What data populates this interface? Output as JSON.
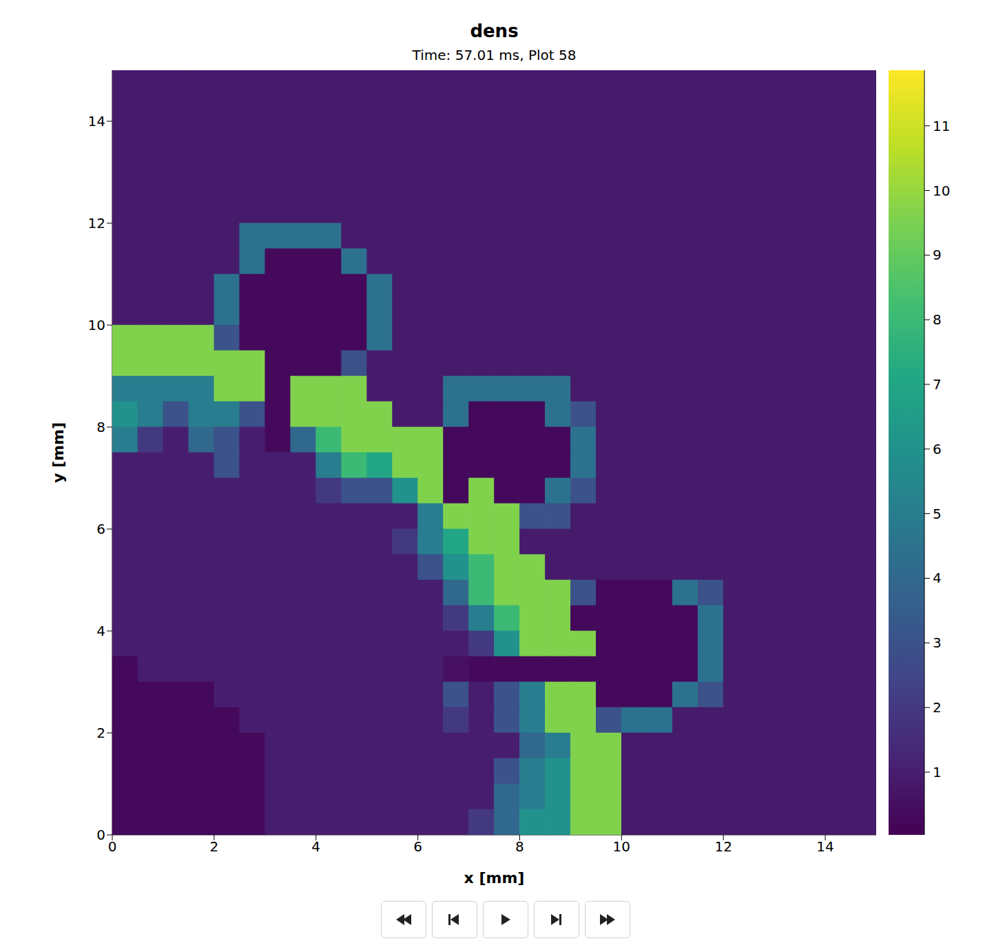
{
  "chart_data": {
    "type": "heatmap",
    "title": "dens",
    "subtitle": "Time: 57.01 ms, Plot 58",
    "x_label": "x [mm]",
    "y_label": "y [mm]",
    "xlim": [
      0,
      15
    ],
    "ylim": [
      0,
      15
    ],
    "xticks": [
      0,
      2,
      4,
      6,
      8,
      10,
      12,
      14
    ],
    "yticks": [
      0,
      2,
      4,
      6,
      8,
      10,
      12,
      14
    ],
    "colorbar": {
      "range": [
        0.03,
        11.86
      ],
      "ticks": [
        1,
        2,
        3,
        4,
        5,
        6,
        7,
        8,
        9,
        10,
        11
      ]
    },
    "cells": [
      [
        0.9,
        0.9,
        0.9,
        0.9,
        0.9,
        0.9,
        0.9,
        0.9,
        0.9,
        0.9,
        0.9,
        0.9,
        0.9,
        0.9,
        0.9,
        0.9,
        0.9,
        0.9,
        0.9,
        0.9,
        0.9,
        0.9,
        0.9,
        0.9,
        0.9,
        0.9,
        0.9,
        0.9,
        0.9,
        0.9
      ],
      [
        0.9,
        0.9,
        0.9,
        0.9,
        0.9,
        0.9,
        0.9,
        0.9,
        0.9,
        0.9,
        0.9,
        0.9,
        0.9,
        0.9,
        0.9,
        0.9,
        0.9,
        0.9,
        0.9,
        0.9,
        0.9,
        0.9,
        0.9,
        0.9,
        0.9,
        0.9,
        0.9,
        0.9,
        0.9,
        0.9
      ],
      [
        0.9,
        0.9,
        0.9,
        0.9,
        0.9,
        0.9,
        0.9,
        0.9,
        0.9,
        0.9,
        0.9,
        0.9,
        0.9,
        0.9,
        0.9,
        0.9,
        0.9,
        0.9,
        0.9,
        0.9,
        0.9,
        0.9,
        0.9,
        0.9,
        0.9,
        0.9,
        0.9,
        0.9,
        0.9,
        0.9
      ],
      [
        0.9,
        0.9,
        0.9,
        0.9,
        0.9,
        0.9,
        0.9,
        0.9,
        0.9,
        0.9,
        0.9,
        0.9,
        0.9,
        0.9,
        0.9,
        0.9,
        0.9,
        0.9,
        0.9,
        0.9,
        0.9,
        0.9,
        0.9,
        0.9,
        0.9,
        0.9,
        0.9,
        0.9,
        0.9,
        0.9
      ],
      [
        0.9,
        0.9,
        0.9,
        0.9,
        0.9,
        0.9,
        0.9,
        0.9,
        0.9,
        0.9,
        0.9,
        0.9,
        0.9,
        0.9,
        0.9,
        0.9,
        0.9,
        0.9,
        0.9,
        0.9,
        0.9,
        0.9,
        0.9,
        0.9,
        0.9,
        0.9,
        0.9,
        0.9,
        0.9,
        0.9
      ],
      [
        0.9,
        0.9,
        0.9,
        0.9,
        0.9,
        0.9,
        0.9,
        0.9,
        0.9,
        0.9,
        0.9,
        0.9,
        0.9,
        0.9,
        0.9,
        0.9,
        0.9,
        0.9,
        0.9,
        0.9,
        0.9,
        0.9,
        0.9,
        0.9,
        0.9,
        0.9,
        0.9,
        0.9,
        0.9,
        0.9
      ],
      [
        0.9,
        0.9,
        0.9,
        0.9,
        0.9,
        4.5,
        4.5,
        4.5,
        4.5,
        0.9,
        0.9,
        0.9,
        0.9,
        0.9,
        0.9,
        0.9,
        0.9,
        0.9,
        0.9,
        0.9,
        0.9,
        0.9,
        0.9,
        0.9,
        0.9,
        0.9,
        0.9,
        0.9,
        0.9,
        0.9
      ],
      [
        0.9,
        0.9,
        0.9,
        0.9,
        0.9,
        4.5,
        0.3,
        0.3,
        0.3,
        4.5,
        0.9,
        0.9,
        0.9,
        0.9,
        0.9,
        0.9,
        0.9,
        0.9,
        0.9,
        0.9,
        0.9,
        0.9,
        0.9,
        0.9,
        0.9,
        0.9,
        0.9,
        0.9,
        0.9,
        0.9
      ],
      [
        0.9,
        0.9,
        0.9,
        0.9,
        4.5,
        0.3,
        0.3,
        0.3,
        0.3,
        0.3,
        4.5,
        0.9,
        0.9,
        0.9,
        0.9,
        0.9,
        0.9,
        0.9,
        0.9,
        0.9,
        0.9,
        0.9,
        0.9,
        0.9,
        0.9,
        0.9,
        0.9,
        0.9,
        0.9,
        0.9
      ],
      [
        0.9,
        0.9,
        0.9,
        0.9,
        4.5,
        0.3,
        0.3,
        0.3,
        0.3,
        0.3,
        4.5,
        0.9,
        0.9,
        0.9,
        0.9,
        0.9,
        0.9,
        0.9,
        0.9,
        0.9,
        0.9,
        0.9,
        0.9,
        0.9,
        0.9,
        0.9,
        0.9,
        0.9,
        0.9,
        0.9
      ],
      [
        9.6,
        9.6,
        9.6,
        9.6,
        3,
        0.3,
        0.3,
        0.3,
        0.3,
        0.3,
        4.5,
        0.9,
        0.9,
        0.9,
        0.9,
        0.9,
        0.9,
        0.9,
        0.9,
        0.9,
        0.9,
        0.9,
        0.9,
        0.9,
        0.9,
        0.9,
        0.9,
        0.9,
        0.9,
        0.9
      ],
      [
        9.6,
        9.6,
        9.6,
        9.6,
        9.6,
        9.6,
        0.3,
        0.3,
        0.3,
        3,
        0.9,
        0.9,
        0.9,
        0.9,
        0.9,
        0.9,
        0.9,
        0.9,
        0.9,
        0.9,
        0.9,
        0.9,
        0.9,
        0.9,
        0.9,
        0.9,
        0.9,
        0.9,
        0.9,
        0.9
      ],
      [
        5,
        5,
        5,
        5,
        9.6,
        9.6,
        0.3,
        9.6,
        9.6,
        9.6,
        0.9,
        0.9,
        0.9,
        4.5,
        4.5,
        4.5,
        4.5,
        4.5,
        0.9,
        0.9,
        0.9,
        0.9,
        0.9,
        0.9,
        0.9,
        0.9,
        0.9,
        0.9,
        0.9,
        0.9
      ],
      [
        6,
        5,
        3,
        5,
        5,
        3,
        0.3,
        9.6,
        9.6,
        9.6,
        9.6,
        0.9,
        0.9,
        4.5,
        0.3,
        0.3,
        0.3,
        4.5,
        3,
        0.9,
        0.9,
        0.9,
        0.9,
        0.9,
        0.9,
        0.9,
        0.9,
        0.9,
        0.9,
        0.9
      ],
      [
        5,
        2,
        1,
        4,
        3,
        1,
        0.3,
        4,
        8,
        9.6,
        9.6,
        9.6,
        9.6,
        0.3,
        0.3,
        0.3,
        0.3,
        0.3,
        4.5,
        0.9,
        0.9,
        0.9,
        0.9,
        0.9,
        0.9,
        0.9,
        0.9,
        0.9,
        0.9,
        0.9
      ],
      [
        1,
        1,
        1,
        1,
        3,
        1,
        1,
        1,
        5,
        8,
        7,
        9.6,
        9.6,
        0.3,
        0.3,
        0.3,
        0.3,
        0.3,
        4.5,
        0.9,
        0.9,
        0.9,
        0.9,
        0.9,
        0.9,
        0.9,
        0.9,
        0.9,
        0.9,
        0.9
      ],
      [
        1,
        1,
        1,
        1,
        1,
        1,
        1,
        1,
        2,
        3,
        3,
        6,
        9.6,
        0.3,
        9.6,
        0.3,
        0.3,
        4.5,
        3,
        0.9,
        0.9,
        0.9,
        0.9,
        0.9,
        0.9,
        0.9,
        0.9,
        0.9,
        0.9,
        0.9
      ],
      [
        1,
        1,
        1,
        1,
        1,
        1,
        1,
        1,
        1,
        1,
        1,
        1,
        5,
        9.6,
        9.6,
        9.6,
        3,
        3,
        0.9,
        0.9,
        0.9,
        0.9,
        0.9,
        0.9,
        0.9,
        0.9,
        0.9,
        0.9,
        0.9,
        0.9
      ],
      [
        1,
        1,
        1,
        1,
        1,
        1,
        1,
        1,
        1,
        1,
        1,
        2,
        5,
        7,
        9.6,
        9.6,
        0.9,
        0.9,
        0.9,
        0.9,
        0.9,
        0.9,
        0.9,
        0.9,
        0.9,
        0.9,
        0.9,
        0.9,
        0.9,
        0.9
      ],
      [
        1,
        1,
        1,
        1,
        1,
        1,
        1,
        1,
        1,
        1,
        1,
        1,
        3,
        6,
        8,
        9.6,
        9.6,
        0.9,
        0.9,
        0.9,
        0.9,
        0.9,
        0.9,
        0.9,
        0.9,
        0.9,
        0.9,
        0.9,
        0.9,
        0.9
      ],
      [
        1,
        1,
        1,
        1,
        1,
        1,
        1,
        1,
        1,
        1,
        1,
        1,
        1,
        4,
        8,
        9.6,
        9.6,
        9.6,
        3,
        0.3,
        0.3,
        0.3,
        4.5,
        3,
        0.9,
        0.9,
        0.9,
        0.9,
        0.9,
        0.9
      ],
      [
        1,
        1,
        1,
        1,
        1,
        1,
        1,
        1,
        1,
        1,
        1,
        1,
        1,
        2,
        5,
        8,
        9.6,
        9.6,
        0.3,
        0.3,
        0.3,
        0.3,
        0.3,
        4.5,
        0.9,
        0.9,
        0.9,
        0.9,
        0.9,
        0.9
      ],
      [
        1,
        1,
        1,
        1,
        1,
        1,
        1,
        1,
        1,
        1,
        1,
        1,
        1,
        1,
        2,
        6,
        9.6,
        9.6,
        9.6,
        0.3,
        0.3,
        0.3,
        0.3,
        4.5,
        0.9,
        0.9,
        0.9,
        0.9,
        0.9,
        0.9
      ],
      [
        0.3,
        1,
        1,
        1,
        1,
        1,
        1,
        1,
        1,
        1,
        1,
        1,
        1,
        0.5,
        0.3,
        0.3,
        0.3,
        0.3,
        0.3,
        0.3,
        0.3,
        0.3,
        0.3,
        4.5,
        0.9,
        0.9,
        0.9,
        0.9,
        0.9,
        0.9
      ],
      [
        0.3,
        0.3,
        0.3,
        0.3,
        1,
        1,
        1,
        1,
        1,
        1,
        1,
        1,
        1,
        3,
        1,
        3,
        5,
        9.6,
        9.6,
        0.3,
        0.3,
        0.3,
        4.5,
        3,
        0.9,
        0.9,
        0.9,
        0.9,
        0.9,
        0.9
      ],
      [
        0.3,
        0.3,
        0.3,
        0.3,
        0.3,
        1,
        1,
        1,
        1,
        1,
        1,
        1,
        1,
        2,
        1,
        3,
        5,
        9.6,
        9.6,
        3,
        4.5,
        4.5,
        0.9,
        0.9,
        0.9,
        0.9,
        0.9,
        0.9,
        0.9,
        0.9
      ],
      [
        0.3,
        0.3,
        0.3,
        0.3,
        0.3,
        0.3,
        1,
        1,
        1,
        1,
        1,
        1,
        1,
        1,
        1,
        1,
        4,
        5,
        9.6,
        9.6,
        0.9,
        0.9,
        0.9,
        0.9,
        0.9,
        0.9,
        0.9,
        0.9,
        0.9,
        0.9
      ],
      [
        0.3,
        0.3,
        0.3,
        0.3,
        0.3,
        0.3,
        1,
        1,
        1,
        1,
        1,
        1,
        1,
        1,
        1,
        3,
        5,
        6,
        9.6,
        9.6,
        0.9,
        0.9,
        0.9,
        0.9,
        0.9,
        0.9,
        0.9,
        0.9,
        0.9,
        0.9
      ],
      [
        0.3,
        0.3,
        0.3,
        0.3,
        0.3,
        0.3,
        1,
        1,
        1,
        1,
        1,
        1,
        1,
        1,
        1,
        4,
        5,
        6,
        9.6,
        9.6,
        0.9,
        0.9,
        0.9,
        0.9,
        0.9,
        0.9,
        0.9,
        0.9,
        0.9,
        0.9
      ],
      [
        0.3,
        0.3,
        0.3,
        0.3,
        0.3,
        0.3,
        1,
        1,
        1,
        1,
        1,
        1,
        1,
        1,
        2,
        4,
        6,
        6,
        9.6,
        9.6,
        0.9,
        0.9,
        0.9,
        0.9,
        0.9,
        0.9,
        0.9,
        0.9,
        0.9,
        0.9
      ]
    ]
  }
}
